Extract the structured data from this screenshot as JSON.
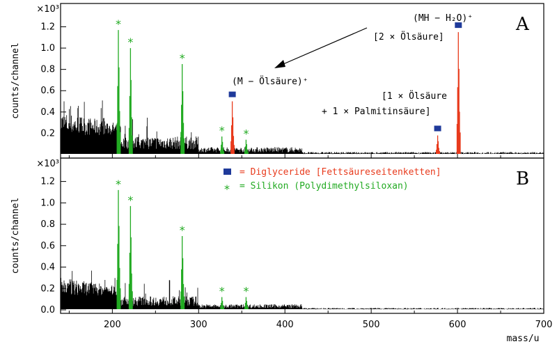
{
  "chart_data": {
    "type": "line",
    "xlabel": "mass/u",
    "xlim": [
      140,
      700
    ],
    "xticks": [
      200,
      300,
      400,
      500,
      600,
      700
    ],
    "multiplier": "×10³",
    "colors": {
      "base": "#000000",
      "silicon": "#22aa22",
      "glyceride": "#e83a1c",
      "square": "#1f3a9a"
    },
    "panels": [
      {
        "letter": "A",
        "ylabel": "counts/channel",
        "ylim": [
          0,
          1.4
        ],
        "yticks": [
          0.2,
          0.4,
          0.6,
          0.8,
          1.0,
          1.2
        ],
        "series": [
          {
            "group": "silicon",
            "peaks": [
              [
                207,
                1.17
              ],
              [
                221,
                1.0
              ],
              [
                281,
                0.85
              ],
              [
                327,
                0.17
              ],
              [
                355,
                0.14
              ]
            ]
          },
          {
            "group": "glyceride",
            "peaks": [
              [
                339,
                0.5
              ],
              [
                577,
                0.18
              ],
              [
                601,
                1.15
              ]
            ]
          }
        ],
        "annotations": [
          {
            "text": "(MH − H₂O)⁺",
            "x": 601
          },
          {
            "text": "[2 × Ölsäure]",
            "x": 601
          },
          {
            "text": "(M − Ölsäure)⁺",
            "x": 339
          },
          {
            "text": "[1 × Ölsäure",
            "x": 577
          },
          {
            "text": "+ 1 ×  Palmitinsäure]",
            "x": 577
          }
        ]
      },
      {
        "letter": "B",
        "ylabel": "counts/channel",
        "ylim": [
          0,
          1.4
        ],
        "yticks": [
          0.0,
          0.2,
          0.4,
          0.6,
          0.8,
          1.0,
          1.2
        ],
        "series": [
          {
            "group": "silicon",
            "peaks": [
              [
                207,
                1.12
              ],
              [
                221,
                0.97
              ],
              [
                281,
                0.69
              ],
              [
                327,
                0.12
              ],
              [
                355,
                0.12
              ]
            ]
          }
        ],
        "legend": [
          {
            "symbol": "square",
            "text": "= Diglyceride [Fettsäureseitenketten]"
          },
          {
            "symbol": "star",
            "text": "= Silikon (Polydimethylsiloxan)"
          }
        ]
      }
    ]
  }
}
